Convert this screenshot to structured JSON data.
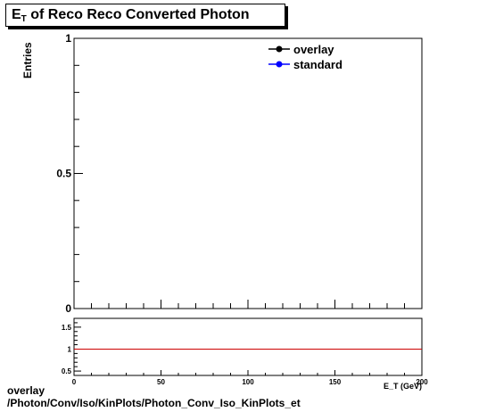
{
  "title": {
    "main": "E",
    "sub": "T",
    "rest": " of Reco Reco Converted Photon"
  },
  "chart_data": [
    {
      "type": "line",
      "ylabel": "Entries",
      "xlabel": "E_T (GeV)",
      "xlim": [
        0,
        200
      ],
      "ylim": [
        0,
        1
      ],
      "yticks": [
        0,
        0.5,
        1
      ],
      "ytick_labels": [
        "0",
        "0.5",
        "1"
      ],
      "legend": {
        "placement": "top-right",
        "entries": [
          {
            "label": "overlay",
            "color": "#000000"
          },
          {
            "label": "standard",
            "color": "#0000ff"
          }
        ]
      },
      "series": [
        {
          "name": "overlay",
          "x": [],
          "y": []
        },
        {
          "name": "standard",
          "x": [],
          "y": []
        }
      ]
    },
    {
      "type": "line",
      "xlim": [
        0,
        200
      ],
      "ylim": [
        0.4,
        1.7
      ],
      "xticks": [
        0,
        50,
        100,
        150,
        200
      ],
      "xtick_labels": [
        "0",
        "50",
        "100",
        "150",
        "200"
      ],
      "yticks": [
        0.5,
        1,
        1.5
      ],
      "ytick_labels": [
        "0.5",
        "1",
        "1.5"
      ],
      "reference_line": {
        "y": 1,
        "color": "#cc0000"
      }
    }
  ],
  "footer": {
    "line1": "overlay",
    "line2": "/Photon/Conv/Iso/KinPlots/Photon_Conv_Iso_KinPlots_et"
  }
}
